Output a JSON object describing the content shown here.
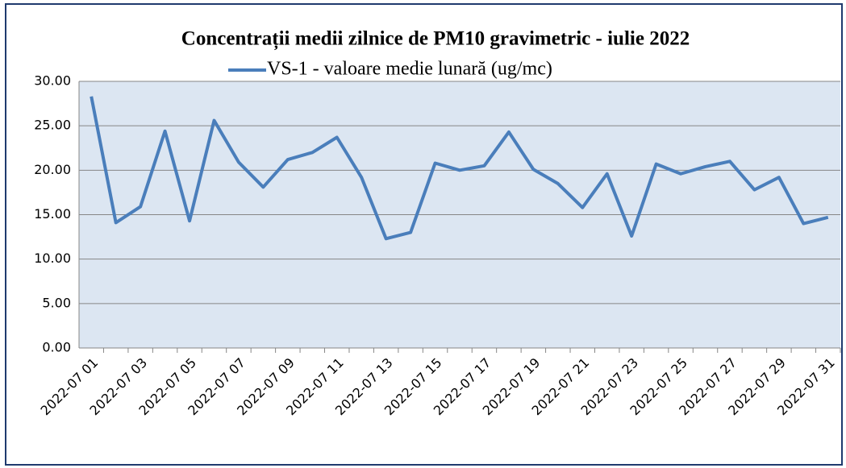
{
  "chart_data": {
    "type": "line",
    "title": "Concentrații  medii zilnice de PM10 gravimetric - iulie 2022",
    "categories": [
      "2022-07 01",
      null,
      "2022-07 03",
      null,
      "2022-07 05",
      null,
      "2022-07 07",
      null,
      "2022-07 09",
      null,
      "2022-07 11",
      null,
      "2022-07 13",
      null,
      "2022-07 15",
      null,
      "2022-07 17",
      null,
      "2022-07 19",
      null,
      "2022-07 21",
      null,
      "2022-07 23",
      null,
      "2022-07 25",
      null,
      "2022-07 27",
      null,
      "2022-07 29",
      null,
      "2022-07 31"
    ],
    "series": [
      {
        "name": "VS-1 - valoare medie lunară (ug/mc)",
        "color": "#4a7ebb",
        "values": [
          28.3,
          14.1,
          15.9,
          24.4,
          14.3,
          25.6,
          20.9,
          18.1,
          21.2,
          22.0,
          23.7,
          19.2,
          12.3,
          13.0,
          20.8,
          20.0,
          20.5,
          24.3,
          20.1,
          18.5,
          15.8,
          19.6,
          12.6,
          20.7,
          19.6,
          20.4,
          21.0,
          17.8,
          19.2,
          14.0,
          14.7
        ]
      }
    ],
    "ylim": [
      0,
      30
    ],
    "yticks": [
      {
        "value": 0,
        "label": "0.00"
      },
      {
        "value": 5,
        "label": "5.00"
      },
      {
        "value": 10,
        "label": "10.00"
      },
      {
        "value": 15,
        "label": "15.00"
      },
      {
        "value": 20,
        "label": "20.00"
      },
      {
        "value": 25,
        "label": "25.00"
      },
      {
        "value": 30,
        "label": "30.00"
      }
    ],
    "grid": true,
    "legend": "top"
  }
}
